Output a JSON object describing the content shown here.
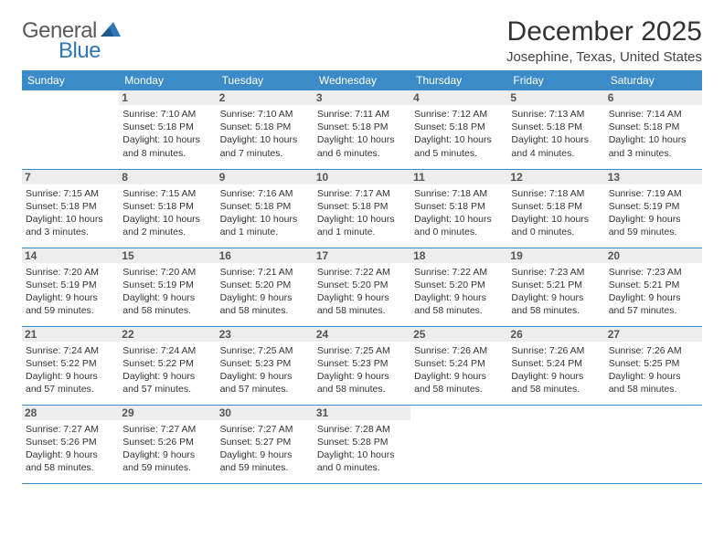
{
  "logo": {
    "text_general": "General",
    "text_blue": "Blue"
  },
  "header": {
    "month_title": "December 2025",
    "location": "Josephine, Texas, United States"
  },
  "colors": {
    "header_bg": "#3b8bc8",
    "header_fg": "#ffffff",
    "daynum_bg": "#ededed",
    "border": "#3b8bc8",
    "logo_blue": "#2f77b5",
    "logo_gray": "#5a5a5a"
  },
  "day_headers": [
    "Sunday",
    "Monday",
    "Tuesday",
    "Wednesday",
    "Thursday",
    "Friday",
    "Saturday"
  ],
  "weeks": [
    [
      {
        "n": "",
        "lines": []
      },
      {
        "n": "1",
        "lines": [
          "Sunrise: 7:10 AM",
          "Sunset: 5:18 PM",
          "Daylight: 10 hours",
          "and 8 minutes."
        ]
      },
      {
        "n": "2",
        "lines": [
          "Sunrise: 7:10 AM",
          "Sunset: 5:18 PM",
          "Daylight: 10 hours",
          "and 7 minutes."
        ]
      },
      {
        "n": "3",
        "lines": [
          "Sunrise: 7:11 AM",
          "Sunset: 5:18 PM",
          "Daylight: 10 hours",
          "and 6 minutes."
        ]
      },
      {
        "n": "4",
        "lines": [
          "Sunrise: 7:12 AM",
          "Sunset: 5:18 PM",
          "Daylight: 10 hours",
          "and 5 minutes."
        ]
      },
      {
        "n": "5",
        "lines": [
          "Sunrise: 7:13 AM",
          "Sunset: 5:18 PM",
          "Daylight: 10 hours",
          "and 4 minutes."
        ]
      },
      {
        "n": "6",
        "lines": [
          "Sunrise: 7:14 AM",
          "Sunset: 5:18 PM",
          "Daylight: 10 hours",
          "and 3 minutes."
        ]
      }
    ],
    [
      {
        "n": "7",
        "lines": [
          "Sunrise: 7:15 AM",
          "Sunset: 5:18 PM",
          "Daylight: 10 hours",
          "and 3 minutes."
        ]
      },
      {
        "n": "8",
        "lines": [
          "Sunrise: 7:15 AM",
          "Sunset: 5:18 PM",
          "Daylight: 10 hours",
          "and 2 minutes."
        ]
      },
      {
        "n": "9",
        "lines": [
          "Sunrise: 7:16 AM",
          "Sunset: 5:18 PM",
          "Daylight: 10 hours",
          "and 1 minute."
        ]
      },
      {
        "n": "10",
        "lines": [
          "Sunrise: 7:17 AM",
          "Sunset: 5:18 PM",
          "Daylight: 10 hours",
          "and 1 minute."
        ]
      },
      {
        "n": "11",
        "lines": [
          "Sunrise: 7:18 AM",
          "Sunset: 5:18 PM",
          "Daylight: 10 hours",
          "and 0 minutes."
        ]
      },
      {
        "n": "12",
        "lines": [
          "Sunrise: 7:18 AM",
          "Sunset: 5:18 PM",
          "Daylight: 10 hours",
          "and 0 minutes."
        ]
      },
      {
        "n": "13",
        "lines": [
          "Sunrise: 7:19 AM",
          "Sunset: 5:19 PM",
          "Daylight: 9 hours",
          "and 59 minutes."
        ]
      }
    ],
    [
      {
        "n": "14",
        "lines": [
          "Sunrise: 7:20 AM",
          "Sunset: 5:19 PM",
          "Daylight: 9 hours",
          "and 59 minutes."
        ]
      },
      {
        "n": "15",
        "lines": [
          "Sunrise: 7:20 AM",
          "Sunset: 5:19 PM",
          "Daylight: 9 hours",
          "and 58 minutes."
        ]
      },
      {
        "n": "16",
        "lines": [
          "Sunrise: 7:21 AM",
          "Sunset: 5:20 PM",
          "Daylight: 9 hours",
          "and 58 minutes."
        ]
      },
      {
        "n": "17",
        "lines": [
          "Sunrise: 7:22 AM",
          "Sunset: 5:20 PM",
          "Daylight: 9 hours",
          "and 58 minutes."
        ]
      },
      {
        "n": "18",
        "lines": [
          "Sunrise: 7:22 AM",
          "Sunset: 5:20 PM",
          "Daylight: 9 hours",
          "and 58 minutes."
        ]
      },
      {
        "n": "19",
        "lines": [
          "Sunrise: 7:23 AM",
          "Sunset: 5:21 PM",
          "Daylight: 9 hours",
          "and 58 minutes."
        ]
      },
      {
        "n": "20",
        "lines": [
          "Sunrise: 7:23 AM",
          "Sunset: 5:21 PM",
          "Daylight: 9 hours",
          "and 57 minutes."
        ]
      }
    ],
    [
      {
        "n": "21",
        "lines": [
          "Sunrise: 7:24 AM",
          "Sunset: 5:22 PM",
          "Daylight: 9 hours",
          "and 57 minutes."
        ]
      },
      {
        "n": "22",
        "lines": [
          "Sunrise: 7:24 AM",
          "Sunset: 5:22 PM",
          "Daylight: 9 hours",
          "and 57 minutes."
        ]
      },
      {
        "n": "23",
        "lines": [
          "Sunrise: 7:25 AM",
          "Sunset: 5:23 PM",
          "Daylight: 9 hours",
          "and 57 minutes."
        ]
      },
      {
        "n": "24",
        "lines": [
          "Sunrise: 7:25 AM",
          "Sunset: 5:23 PM",
          "Daylight: 9 hours",
          "and 58 minutes."
        ]
      },
      {
        "n": "25",
        "lines": [
          "Sunrise: 7:26 AM",
          "Sunset: 5:24 PM",
          "Daylight: 9 hours",
          "and 58 minutes."
        ]
      },
      {
        "n": "26",
        "lines": [
          "Sunrise: 7:26 AM",
          "Sunset: 5:24 PM",
          "Daylight: 9 hours",
          "and 58 minutes."
        ]
      },
      {
        "n": "27",
        "lines": [
          "Sunrise: 7:26 AM",
          "Sunset: 5:25 PM",
          "Daylight: 9 hours",
          "and 58 minutes."
        ]
      }
    ],
    [
      {
        "n": "28",
        "lines": [
          "Sunrise: 7:27 AM",
          "Sunset: 5:26 PM",
          "Daylight: 9 hours",
          "and 58 minutes."
        ]
      },
      {
        "n": "29",
        "lines": [
          "Sunrise: 7:27 AM",
          "Sunset: 5:26 PM",
          "Daylight: 9 hours",
          "and 59 minutes."
        ]
      },
      {
        "n": "30",
        "lines": [
          "Sunrise: 7:27 AM",
          "Sunset: 5:27 PM",
          "Daylight: 9 hours",
          "and 59 minutes."
        ]
      },
      {
        "n": "31",
        "lines": [
          "Sunrise: 7:28 AM",
          "Sunset: 5:28 PM",
          "Daylight: 10 hours",
          "and 0 minutes."
        ]
      },
      {
        "n": "",
        "lines": []
      },
      {
        "n": "",
        "lines": []
      },
      {
        "n": "",
        "lines": []
      }
    ]
  ]
}
